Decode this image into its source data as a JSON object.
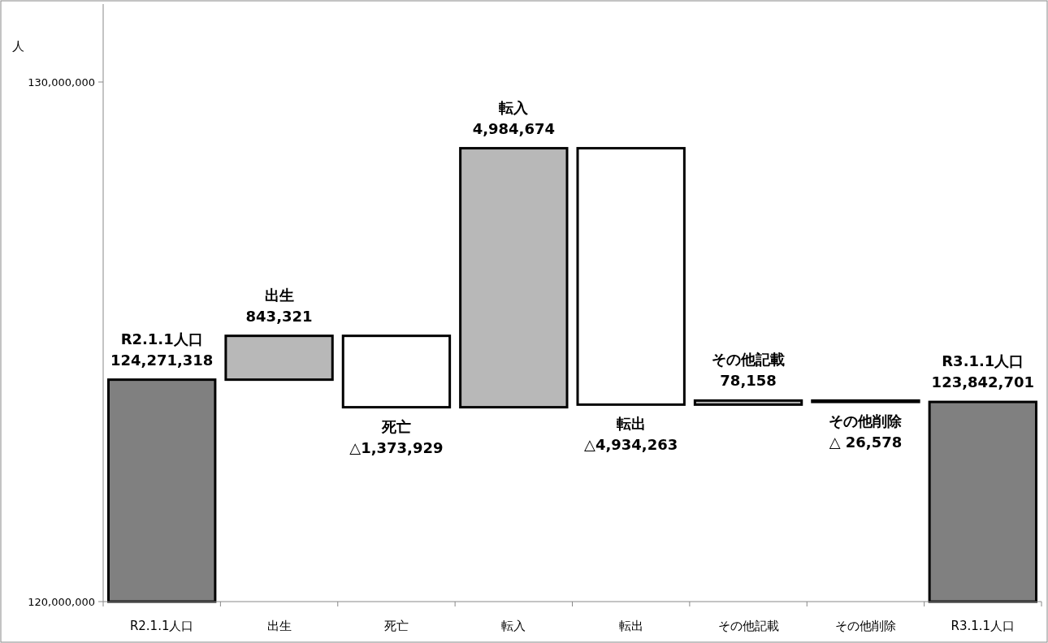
{
  "chart_data": {
    "type": "bar",
    "ylabel": "人",
    "categories": [
      "R2.1.1人口",
      "出生",
      "死亡",
      "転入",
      "転出",
      "その他記載",
      "その他削除",
      "R3.1.1人口"
    ],
    "values": [
      124271318,
      843321,
      -1373929,
      4984674,
      -4934263,
      78158,
      -26578,
      123842701
    ],
    "base": [
      null,
      124271318,
      125114639,
      123740710,
      128725384,
      123791121,
      123869279,
      null
    ],
    "colors": [
      "#808080",
      "#b8b8b8",
      "#ffffff",
      "#b8b8b8",
      "#ffffff",
      "#b8b8b8",
      "#ffffff",
      "#808080"
    ],
    "value_labels": [
      "124,271,318",
      "843,321",
      "△1,373,929",
      "4,984,674",
      "△4,934,263",
      "78,158",
      "△ 26,578",
      "123,842,701"
    ],
    "ylim": [
      120000000,
      131500000
    ],
    "yticks": [
      {
        "value": 120000000,
        "label": "120,000,000"
      },
      {
        "value": 130000000,
        "label": "130,000,000"
      }
    ],
    "grid": false
  }
}
